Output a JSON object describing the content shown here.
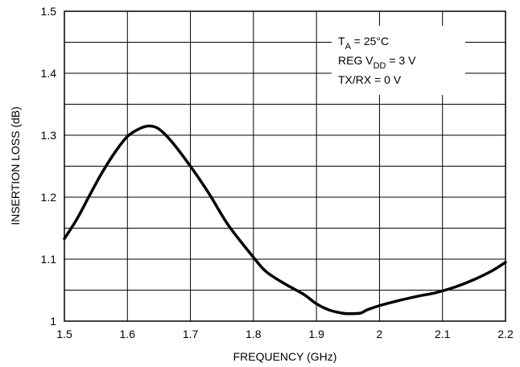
{
  "chart_data": {
    "type": "line",
    "xlabel": "FREQUENCY (GHz)",
    "ylabel": "INSERTION LOSS (dB)",
    "xlim": [
      1.5,
      2.2
    ],
    "ylim": [
      1.0,
      1.5
    ],
    "x_ticks": [
      "1.5",
      "1.6",
      "1.7",
      "1.8",
      "1.9",
      "2",
      "2.1",
      "2.2"
    ],
    "y_ticks": [
      "1",
      "1.1",
      "1.2",
      "1.3",
      "1.4",
      "1.5"
    ],
    "grid": true,
    "legend_placement": "top-right",
    "annotations": {
      "ta_main": "T",
      "ta_sub": "A",
      "ta_rest": " = 25°C",
      "reg_main": "REG V",
      "reg_sub": "DD",
      "reg_rest": " = 3 V",
      "txrx": "TX/RX = 0 V"
    },
    "series": [
      {
        "x": [
          1.5,
          1.52,
          1.54,
          1.56,
          1.58,
          1.6,
          1.62,
          1.635,
          1.65,
          1.67,
          1.7,
          1.73,
          1.76,
          1.8,
          1.82,
          1.85,
          1.88,
          1.9,
          1.92,
          1.94,
          1.95,
          1.97,
          1.98,
          2.0,
          2.03,
          2.06,
          2.09,
          2.12,
          2.15,
          2.18,
          2.2
        ],
        "y": [
          1.133,
          1.165,
          1.203,
          1.24,
          1.272,
          1.298,
          1.311,
          1.315,
          1.31,
          1.29,
          1.25,
          1.205,
          1.155,
          1.103,
          1.08,
          1.06,
          1.043,
          1.028,
          1.018,
          1.013,
          1.012,
          1.013,
          1.018,
          1.025,
          1.033,
          1.04,
          1.046,
          1.055,
          1.067,
          1.082,
          1.095
        ]
      }
    ]
  }
}
